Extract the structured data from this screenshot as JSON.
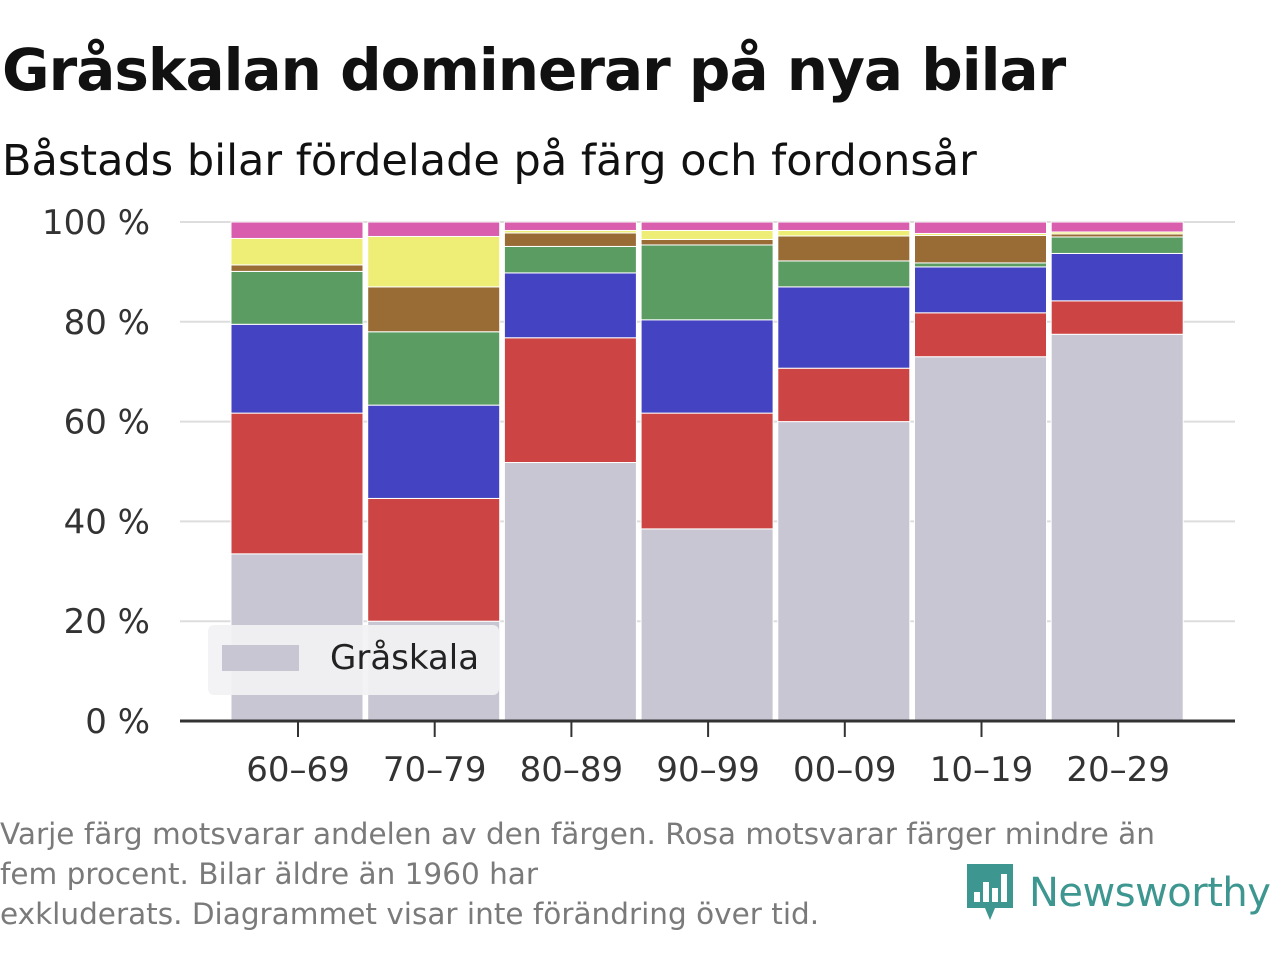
{
  "header": {
    "title": "Gråskalan dominerar på nya bilar",
    "subtitle": "Båstads bilar fördelade på färg och fordonsår"
  },
  "footnote": {
    "line1": "Varje färg motsvarar andelen av den färgen. Rosa motsvarar färger mindre än",
    "line2": "fem procent. Bilar äldre än 1960 har",
    "line3": "exkluderats. Diagrammet visar inte förändring över tid."
  },
  "brand": {
    "name": "Newsworthy",
    "color": "#3d968f",
    "icon": "bar-chart-logo-icon"
  },
  "chart_data": {
    "type": "bar",
    "stacked": true,
    "categories": [
      "60–69",
      "70–79",
      "80–89",
      "90–99",
      "00–09",
      "10–19",
      "20–29"
    ],
    "ylim": [
      0,
      100
    ],
    "yticks": [
      0,
      20,
      40,
      60,
      80,
      100
    ],
    "ytick_labels": [
      "0 %",
      "20 %",
      "40 %",
      "60 %",
      "80 %",
      "100 %"
    ],
    "grid": true,
    "legend": {
      "position": "bottom-left",
      "entries": [
        "Gråskala"
      ]
    },
    "series": [
      {
        "name": "Gråskala",
        "color": "#c8c6d2",
        "values": [
          33.5,
          20.0,
          51.8,
          38.5,
          60.0,
          73.0,
          77.5
        ]
      },
      {
        "color": "#cc4444",
        "values": [
          28.2,
          24.6,
          25.0,
          23.2,
          10.7,
          8.8,
          6.7
        ]
      },
      {
        "color": "#4444c2",
        "values": [
          17.8,
          18.7,
          13.0,
          18.7,
          16.3,
          9.2,
          9.5
        ]
      },
      {
        "color": "#5a9c62",
        "values": [
          10.6,
          14.7,
          5.3,
          15.0,
          5.2,
          0.8,
          3.3
        ]
      },
      {
        "color": "#996c36",
        "values": [
          1.3,
          9.0,
          2.7,
          1.1,
          5.0,
          5.5,
          0.6
        ]
      },
      {
        "color": "#eeee77",
        "values": [
          5.3,
          10.1,
          0.5,
          1.8,
          1.1,
          0.4,
          0.4
        ]
      },
      {
        "color": "#d95fae",
        "values": [
          3.3,
          2.9,
          1.7,
          1.7,
          1.7,
          2.3,
          2.0
        ]
      }
    ]
  }
}
